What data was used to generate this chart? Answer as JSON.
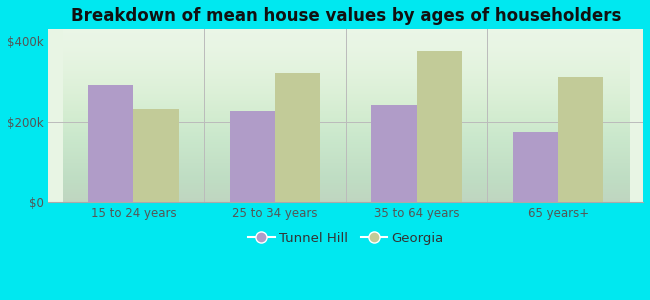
{
  "title": "Breakdown of mean house values by ages of householders",
  "categories": [
    "15 to 24 years",
    "25 to 34 years",
    "35 to 64 years",
    "65 years+"
  ],
  "tunnel_hill": [
    290000,
    225000,
    240000,
    175000
  ],
  "georgia": [
    230000,
    320000,
    375000,
    310000
  ],
  "tunnel_hill_color": "#b09cc8",
  "georgia_color": "#c2cb98",
  "background_outer": "#00e8f0",
  "ylim": [
    0,
    430000
  ],
  "yticks": [
    0,
    200000,
    400000
  ],
  "ytick_labels": [
    "$0",
    "$200k",
    "$400k"
  ],
  "legend_tunnel_hill": "Tunnel Hill",
  "legend_georgia": "Georgia",
  "bar_width": 0.32,
  "title_fontsize": 12,
  "tick_fontsize": 8.5,
  "legend_fontsize": 9.5
}
